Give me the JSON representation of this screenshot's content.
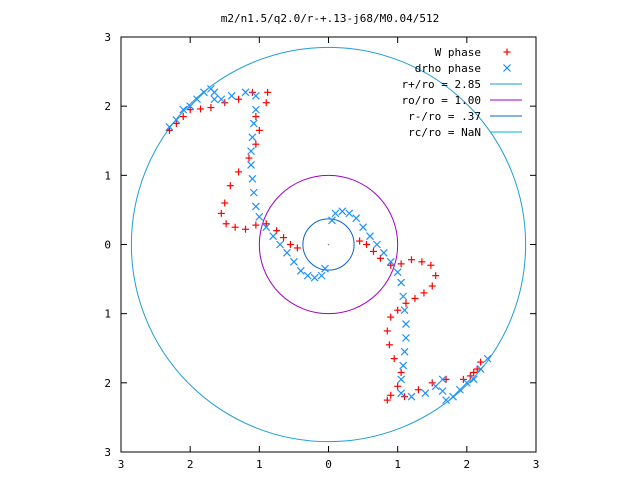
{
  "chart_data": {
    "type": "scatter",
    "title": "m2/n1.5/q2.0/r-+.13-j68/M0.04/512",
    "xlabel": "",
    "ylabel": "",
    "xlim": [
      -3,
      3
    ],
    "ylim": [
      -3,
      3
    ],
    "x_tick_values": [
      -3,
      -2,
      -1,
      0,
      1,
      2,
      3
    ],
    "x_tick_labels": [
      "3",
      "2",
      "1",
      "0",
      "1",
      "2",
      "3"
    ],
    "y_tick_values": [
      3,
      2,
      1,
      0,
      -1,
      -2,
      -3
    ],
    "y_tick_labels": [
      "3",
      "2",
      "1",
      "0",
      "1",
      "2",
      "3"
    ],
    "grid": false,
    "legend_position": "top-right",
    "series": [
      {
        "name": "W phase",
        "marker": "plus",
        "color": "#ff0000",
        "points": [
          [
            0.45,
            0.05
          ],
          [
            0.55,
            0.0
          ],
          [
            0.65,
            -0.1
          ],
          [
            0.75,
            -0.2
          ],
          [
            0.9,
            -0.3
          ],
          [
            1.05,
            -0.28
          ],
          [
            1.2,
            -0.22
          ],
          [
            1.35,
            -0.25
          ],
          [
            1.48,
            -0.3
          ],
          [
            1.55,
            -0.45
          ],
          [
            1.5,
            -0.6
          ],
          [
            1.38,
            -0.7
          ],
          [
            1.25,
            -0.78
          ],
          [
            1.12,
            -0.85
          ],
          [
            1.0,
            -0.95
          ],
          [
            0.9,
            -1.05
          ],
          [
            0.85,
            -1.25
          ],
          [
            0.88,
            -1.45
          ],
          [
            0.95,
            -1.65
          ],
          [
            1.05,
            -1.85
          ],
          [
            1.0,
            -2.05
          ],
          [
            0.9,
            -2.18
          ],
          [
            0.85,
            -2.25
          ],
          [
            1.1,
            -2.2
          ],
          [
            1.3,
            -2.1
          ],
          [
            1.5,
            -2.0
          ],
          [
            1.7,
            -1.95
          ],
          [
            1.95,
            -1.95
          ],
          [
            2.05,
            -1.9
          ],
          [
            2.1,
            -1.85
          ],
          [
            2.15,
            -1.8
          ],
          [
            2.2,
            -1.7
          ],
          [
            -0.45,
            -0.05
          ],
          [
            -0.55,
            0.0
          ],
          [
            -0.65,
            0.1
          ],
          [
            -0.75,
            0.2
          ],
          [
            -0.9,
            0.3
          ],
          [
            -1.05,
            0.28
          ],
          [
            -1.2,
            0.22
          ],
          [
            -1.35,
            0.25
          ],
          [
            -1.48,
            0.3
          ],
          [
            -1.55,
            0.45
          ],
          [
            -1.5,
            0.6
          ],
          [
            -1.42,
            0.85
          ],
          [
            -1.3,
            1.05
          ],
          [
            -1.15,
            1.25
          ],
          [
            -1.05,
            1.45
          ],
          [
            -1.0,
            1.65
          ],
          [
            -1.05,
            1.85
          ],
          [
            -0.9,
            2.05
          ],
          [
            -0.88,
            2.2
          ],
          [
            -1.1,
            2.2
          ],
          [
            -1.3,
            2.1
          ],
          [
            -1.5,
            2.05
          ],
          [
            -1.7,
            1.98
          ],
          [
            -1.85,
            1.96
          ],
          [
            -2.0,
            1.95
          ],
          [
            -2.1,
            1.85
          ],
          [
            -2.2,
            1.75
          ],
          [
            -2.3,
            1.65
          ]
        ]
      },
      {
        "name": "drho phase",
        "marker": "cross",
        "color": "#1e90ff",
        "points": [
          [
            0.05,
            0.35
          ],
          [
            0.1,
            0.45
          ],
          [
            0.2,
            0.48
          ],
          [
            0.3,
            0.45
          ],
          [
            0.4,
            0.38
          ],
          [
            0.5,
            0.25
          ],
          [
            0.6,
            0.12
          ],
          [
            0.7,
            0.0
          ],
          [
            0.8,
            -0.12
          ],
          [
            0.9,
            -0.25
          ],
          [
            1.0,
            -0.4
          ],
          [
            1.05,
            -0.55
          ],
          [
            1.08,
            -0.75
          ],
          [
            1.1,
            -0.95
          ],
          [
            1.12,
            -1.15
          ],
          [
            1.12,
            -1.35
          ],
          [
            1.1,
            -1.55
          ],
          [
            1.08,
            -1.75
          ],
          [
            1.05,
            -1.95
          ],
          [
            1.05,
            -2.15
          ],
          [
            1.2,
            -2.2
          ],
          [
            1.4,
            -2.15
          ],
          [
            1.55,
            -2.05
          ],
          [
            1.65,
            -1.95
          ],
          [
            1.65,
            -2.12
          ],
          [
            1.7,
            -2.25
          ],
          [
            1.8,
            -2.2
          ],
          [
            1.9,
            -2.1
          ],
          [
            2.0,
            -2.0
          ],
          [
            2.1,
            -1.95
          ],
          [
            2.2,
            -1.8
          ],
          [
            2.3,
            -1.65
          ],
          [
            -0.05,
            -0.35
          ],
          [
            -0.1,
            -0.45
          ],
          [
            -0.2,
            -0.48
          ],
          [
            -0.3,
            -0.45
          ],
          [
            -0.4,
            -0.38
          ],
          [
            -0.5,
            -0.25
          ],
          [
            -0.6,
            -0.12
          ],
          [
            -0.7,
            0.0
          ],
          [
            -0.8,
            0.12
          ],
          [
            -0.9,
            0.25
          ],
          [
            -1.0,
            0.4
          ],
          [
            -1.05,
            0.55
          ],
          [
            -1.08,
            0.75
          ],
          [
            -1.1,
            0.95
          ],
          [
            -1.12,
            1.15
          ],
          [
            -1.12,
            1.35
          ],
          [
            -1.1,
            1.55
          ],
          [
            -1.08,
            1.75
          ],
          [
            -1.05,
            1.95
          ],
          [
            -1.05,
            2.15
          ],
          [
            -1.2,
            2.2
          ],
          [
            -1.4,
            2.15
          ],
          [
            -1.55,
            2.1
          ],
          [
            -1.65,
            2.1
          ],
          [
            -1.65,
            2.2
          ],
          [
            -1.7,
            2.25
          ],
          [
            -1.8,
            2.2
          ],
          [
            -1.9,
            2.1
          ],
          [
            -2.0,
            2.0
          ],
          [
            -2.1,
            1.95
          ],
          [
            -2.2,
            1.8
          ],
          [
            -2.3,
            1.7
          ]
        ]
      }
    ],
    "circles": [
      {
        "name": "r+/ro = 2.85",
        "radius": 2.85,
        "color": "#1f9ed6"
      },
      {
        "name": "ro/ro = 1.00",
        "radius": 1.0,
        "color": "#a000c8"
      },
      {
        "name": "r-/ro = .37",
        "radius": 0.37,
        "color": "#0a64c8"
      },
      {
        "name": "rc/ro = NaN",
        "radius": null,
        "color": "#00b4dc"
      }
    ],
    "legend": [
      {
        "label": "W phase",
        "kind": "plus",
        "color": "#ff0000"
      },
      {
        "label": "drho phase",
        "kind": "cross",
        "color": "#1e90ff"
      },
      {
        "label": "r+/ro = 2.85",
        "kind": "line",
        "color": "#1f9ed6"
      },
      {
        "label": "ro/ro = 1.00",
        "kind": "line",
        "color": "#a000c8"
      },
      {
        "label": "r-/ro = .37",
        "kind": "line",
        "color": "#0a64c8"
      },
      {
        "label": "rc/ro = NaN",
        "kind": "line",
        "color": "#00b4dc"
      }
    ]
  }
}
